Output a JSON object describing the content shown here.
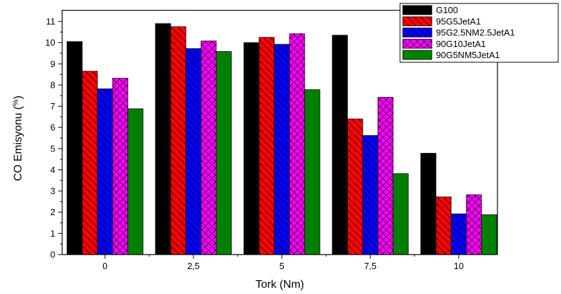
{
  "chart_data": {
    "type": "bar",
    "xlabel": "Tork (Nm)",
    "ylabel": "CO Emisyonu (%)",
    "ylabel_parts": [
      "CO Emisyonu (",
      "%",
      ")"
    ],
    "categories": [
      "0",
      "2,5",
      "5",
      "7,5",
      "10"
    ],
    "ylim": [
      0,
      11
    ],
    "yticks": [
      0,
      1,
      2,
      3,
      4,
      5,
      6,
      7,
      8,
      9,
      10,
      11
    ],
    "grid": false,
    "legend_position": "top-right",
    "series": [
      {
        "name": "G100",
        "color": "#000000",
        "pattern": "solid",
        "values": [
          10.05,
          10.9,
          10.0,
          10.35,
          4.78
        ]
      },
      {
        "name": "95G5JetA1",
        "color": "#ff0000",
        "pattern": "diagonal-hatch",
        "values": [
          8.65,
          10.75,
          10.25,
          6.4,
          2.72
        ]
      },
      {
        "name": "95G2.5NM2.5JetA1",
        "color": "#0000ff",
        "pattern": "diagonal-hatch",
        "values": [
          7.82,
          9.72,
          9.92,
          5.62,
          1.92
        ]
      },
      {
        "name": "90G10JetA1",
        "color": "#ff00ff",
        "pattern": "cross-hatch",
        "values": [
          8.32,
          10.08,
          10.42,
          7.42,
          2.82
        ]
      },
      {
        "name": "90G5NM5JetA1",
        "color": "#008000",
        "pattern": "solid",
        "values": [
          6.88,
          9.58,
          7.78,
          3.82,
          1.88
        ]
      }
    ]
  }
}
